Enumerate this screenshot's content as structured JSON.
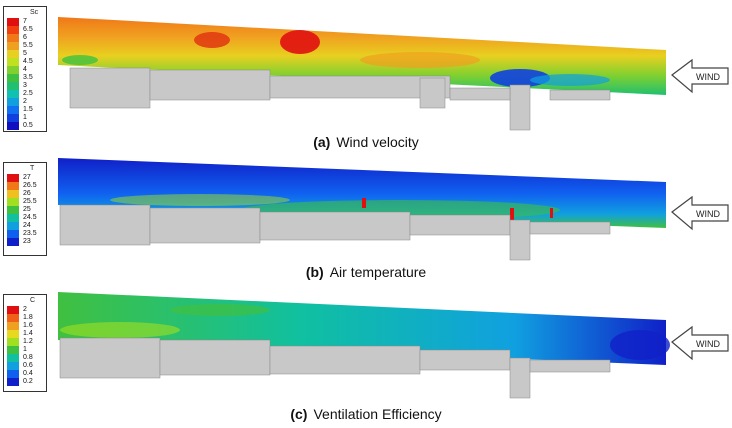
{
  "panels": [
    {
      "id": "a",
      "letter": "(a)",
      "caption": "Wind velocity",
      "legend": {
        "title": "Sc",
        "labels": [
          "7",
          "6.5",
          "6",
          "5.5",
          "5",
          "4.5",
          "4",
          "3.5",
          "3",
          "2.5",
          "2",
          "1.5",
          "1",
          "0.5"
        ],
        "colors": [
          "#e01010",
          "#f04010",
          "#f07818",
          "#f0a020",
          "#e8d020",
          "#c0e020",
          "#80d030",
          "#40c040",
          "#20c070",
          "#10c0b0",
          "#10a0e0",
          "#1070f0",
          "#1040e0",
          "#1010c0"
        ]
      },
      "wind_label": "WIND"
    },
    {
      "id": "b",
      "letter": "(b)",
      "caption": "Air temperature",
      "legend": {
        "title": "T",
        "labels": [
          "27",
          "26.5",
          "26",
          "25.5",
          "25",
          "24.5",
          "24",
          "23.5",
          "23"
        ],
        "colors": [
          "#e01010",
          "#f07818",
          "#f0c020",
          "#a0e020",
          "#40c040",
          "#10c0a0",
          "#10a0e0",
          "#1060f0",
          "#1020c8"
        ]
      },
      "wind_label": "WIND"
    },
    {
      "id": "c",
      "letter": "(c)",
      "caption": "Ventilation Efficiency",
      "legend": {
        "title": "C",
        "labels": [
          "2",
          "1.8",
          "1.6",
          "1.4",
          "1.2",
          "1",
          "0.8",
          "0.6",
          "0.4",
          "0.2"
        ],
        "colors": [
          "#e01010",
          "#f06018",
          "#f0a020",
          "#e8d820",
          "#a0e020",
          "#40c040",
          "#10c0a0",
          "#10a0e0",
          "#1060f0",
          "#1020c8"
        ]
      },
      "wind_label": "WIND"
    }
  ]
}
